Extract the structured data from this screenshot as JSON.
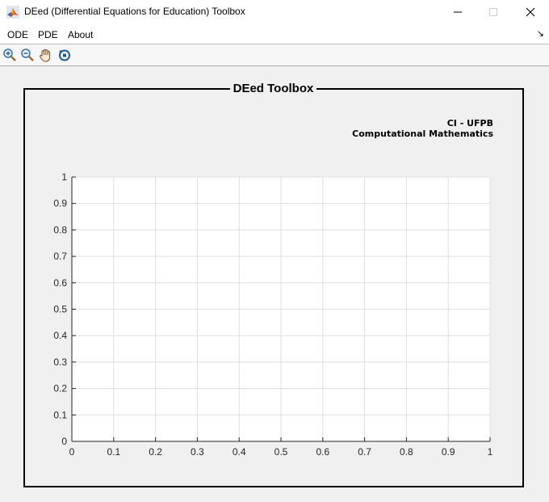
{
  "window": {
    "title": "DEed (Differential Equations for Education) Toolbox",
    "app_icon": "matlab-icon",
    "controls": [
      "minimize-icon",
      "maximize-icon",
      "close-icon"
    ]
  },
  "menu": {
    "items": [
      "ODE",
      "PDE",
      "About"
    ],
    "overflow_icon": "menu-arrow-icon"
  },
  "toolbar": {
    "tools": [
      "zoom-in-icon",
      "zoom-out-icon",
      "pan-hand-icon",
      "rotate-icon"
    ]
  },
  "panel": {
    "title": "DEed Toolbox",
    "credit_line1": "CI - UFPB",
    "credit_line2": "Computational Mathematics"
  },
  "chart_data": {
    "type": "line",
    "title": "",
    "xlabel": "",
    "ylabel": "",
    "xlim": [
      0,
      1
    ],
    "ylim": [
      0,
      1
    ],
    "x_ticks": [
      "0",
      "0.1",
      "0.2",
      "0.3",
      "0.4",
      "0.5",
      "0.6",
      "0.7",
      "0.8",
      "0.9",
      "1"
    ],
    "y_ticks": [
      "0",
      "0.1",
      "0.2",
      "0.3",
      "0.4",
      "0.5",
      "0.6",
      "0.7",
      "0.8",
      "0.9",
      "1"
    ],
    "grid": true,
    "series": []
  },
  "colors": {
    "axes_background": "#ffffff",
    "grid": "#dfdfdf",
    "axis": "#262626",
    "panel_border": "#000000"
  }
}
